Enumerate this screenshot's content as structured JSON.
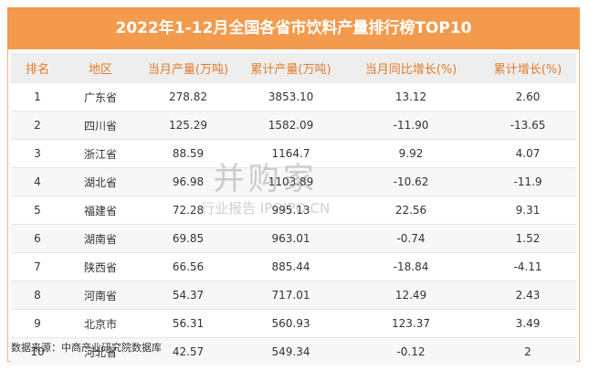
{
  "header": {
    "title": "2022年1-12月全国各省市饮料产量排行榜TOP10"
  },
  "table": {
    "columns": [
      "排名",
      "地区",
      "当月产量(万吨)",
      "累计产量(万吨)",
      "当月同比增长(%)",
      "累计增长(%)"
    ],
    "rows": [
      [
        "1",
        "广东省",
        "278.82",
        "3853.10",
        "13.12",
        "2.60"
      ],
      [
        "2",
        "四川省",
        "125.29",
        "1582.09",
        "-11.90",
        "-13.65"
      ],
      [
        "3",
        "浙江省",
        "88.59",
        "1164.7",
        "9.92",
        "4.07"
      ],
      [
        "4",
        "湖北省",
        "96.98",
        "1103.89",
        "-10.62",
        "-11.9"
      ],
      [
        "5",
        "福建省",
        "72.28",
        "995.13",
        "22.56",
        "9.31"
      ],
      [
        "6",
        "湖南省",
        "69.85",
        "963.01",
        "-0.74",
        "1.52"
      ],
      [
        "7",
        "陕西省",
        "66.56",
        "885.44",
        "-18.84",
        "-4.11"
      ],
      [
        "8",
        "河南省",
        "54.37",
        "717.01",
        "12.49",
        "2.43"
      ],
      [
        "9",
        "北京市",
        "56.31",
        "560.93",
        "123.37",
        "3.49"
      ],
      [
        "10",
        "河北省",
        "42.57",
        "549.34",
        "-0.12",
        "2"
      ]
    ]
  },
  "footer": {
    "source": "数据来源：中商产业研究院数据库"
  },
  "watermark": {
    "brand": "并购家",
    "sub": "行业报告 IPOIPO.CN"
  }
}
